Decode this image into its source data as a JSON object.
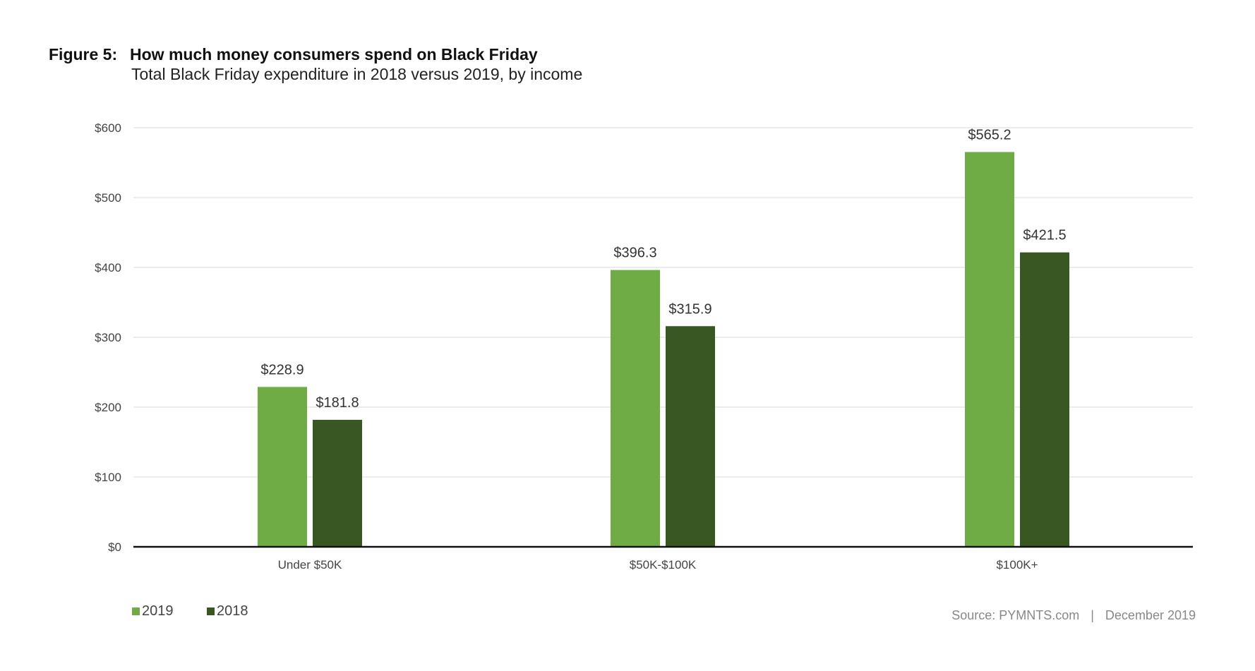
{
  "header": {
    "figure_label": "Figure 5:",
    "title": "How much money consumers spend on Black Friday",
    "subtitle": "Total Black Friday expenditure in 2018 versus 2019, by income"
  },
  "footer": {
    "source": "Source: PYMNTS.com",
    "separator": "|",
    "date": "December 2019"
  },
  "chart_data": {
    "type": "bar",
    "title": "How much money consumers spend on Black Friday",
    "subtitle": "Total Black Friday expenditure in 2018 versus 2019, by income",
    "categories": [
      "Under $50K",
      "$50K-$100K",
      "$100K+"
    ],
    "series": [
      {
        "name": "2019",
        "color": "#6fac46",
        "values": [
          228.9,
          396.3,
          565.2
        ],
        "labels": [
          "$228.9",
          "$396.3",
          "$565.2"
        ]
      },
      {
        "name": "2018",
        "color": "#385723",
        "values": [
          181.8,
          315.9,
          421.5
        ],
        "labels": [
          "$181.8",
          "$315.9",
          "$421.5"
        ]
      }
    ],
    "ylim": [
      0,
      600
    ],
    "yticks": [
      0,
      100,
      200,
      300,
      400,
      500,
      600
    ],
    "ytick_labels": [
      "$0",
      "$100",
      "$200",
      "$300",
      "$400",
      "$500",
      "$600"
    ],
    "xlabel": "",
    "ylabel": "",
    "grid": true,
    "legend": "bottom-left"
  }
}
